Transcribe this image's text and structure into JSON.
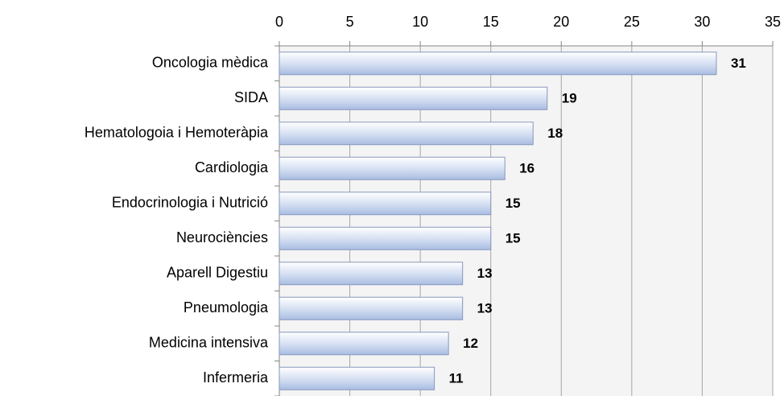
{
  "chart_data": {
    "type": "bar",
    "orientation": "horizontal",
    "categories": [
      "Oncologia mèdica",
      "SIDA",
      "Hematologoia i Hemoteràpia",
      "Cardiologia",
      "Endocrinologia i Nutrició",
      "Neurociències",
      "Aparell Digestiu",
      "Pneumologia",
      "Medicina intensiva",
      "Infermeria"
    ],
    "values": [
      31,
      19,
      18,
      16,
      15,
      15,
      13,
      13,
      12,
      11
    ],
    "color": "#b3c6e7",
    "xlim": [
      0,
      35
    ],
    "xticks": [
      0,
      5,
      10,
      15,
      20,
      25,
      30,
      35
    ],
    "grid": true
  }
}
